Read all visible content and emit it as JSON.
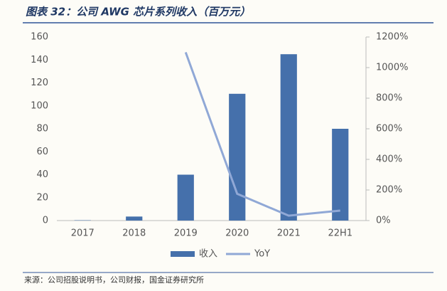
{
  "title": "图表 32：公司 AWG 芯片系列收入（百万元）",
  "source": "来源：公司招股说明书，公司财报，国金证券研究所",
  "chart_data": {
    "type": "bar",
    "categories": [
      "2017",
      "2018",
      "2019",
      "2020",
      "2021",
      "22H1"
    ],
    "series": [
      {
        "name": "收入",
        "type": "bar",
        "color": "#4570ab",
        "values": [
          0.3,
          3.5,
          40,
          110.5,
          145,
          80
        ]
      },
      {
        "name": "YoY",
        "type": "line",
        "axis": "y2",
        "color": "#90a8d6",
        "values": [
          null,
          null,
          1100,
          175,
          32,
          65
        ]
      }
    ],
    "ylim": [
      0,
      160
    ],
    "yticks": [
      0,
      20,
      40,
      60,
      80,
      100,
      120,
      140,
      160
    ],
    "y2lim": [
      0,
      1200
    ],
    "y2ticks": [
      {
        "value": 0,
        "label": "0%"
      },
      {
        "value": 200,
        "label": "200%"
      },
      {
        "value": 400,
        "label": "400%"
      },
      {
        "value": 600,
        "label": "600%"
      },
      {
        "value": 800,
        "label": "800%"
      },
      {
        "value": 1000,
        "label": "1000%"
      },
      {
        "value": 1200,
        "label": "1200%"
      }
    ],
    "legend": "bottom"
  }
}
